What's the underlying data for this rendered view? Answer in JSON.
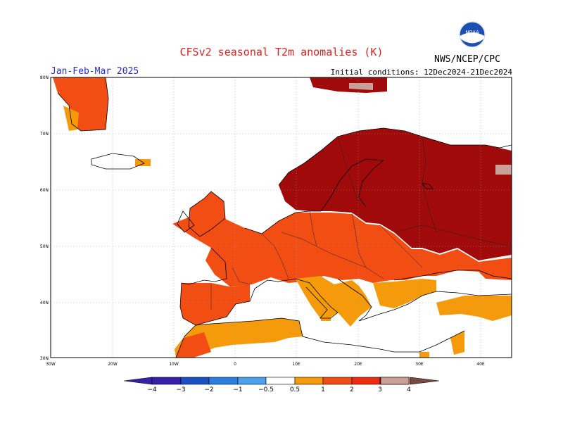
{
  "title": "CFSv2 seasonal T2m anomalies (K)",
  "period": "Jan-Feb-Mar 2025",
  "initial_conditions": "Initial conditions: 12Dec2024-21Dec2024",
  "agency": "NWS/NCEP/CPC",
  "logo_text": "NOAA",
  "lat_labels": [
    "80N",
    "70N",
    "60N",
    "50N",
    "40N",
    "30N"
  ],
  "lon_labels": [
    "30W",
    "20W",
    "10W",
    "0",
    "10E",
    "20E",
    "30E",
    "40E"
  ],
  "colorbar": {
    "labels": [
      "−4",
      "−3",
      "−2",
      "−1",
      "−0.5",
      "0.5",
      "1",
      "2",
      "3",
      "4"
    ],
    "colors": [
      "#3a1fa8",
      "#1a52c4",
      "#2d7ee0",
      "#4aa0ec",
      "#7cc0f4",
      "#ffffff",
      "#f59a0a",
      "#f24d12",
      "#ee2a10",
      "#a00a0a",
      "#c8a096",
      "#7a4a42"
    ]
  },
  "colors": {
    "c05": "#f59a0a",
    "c1": "#f24d12",
    "c2": "#a00a0a",
    "c3": "#c8a096"
  }
}
